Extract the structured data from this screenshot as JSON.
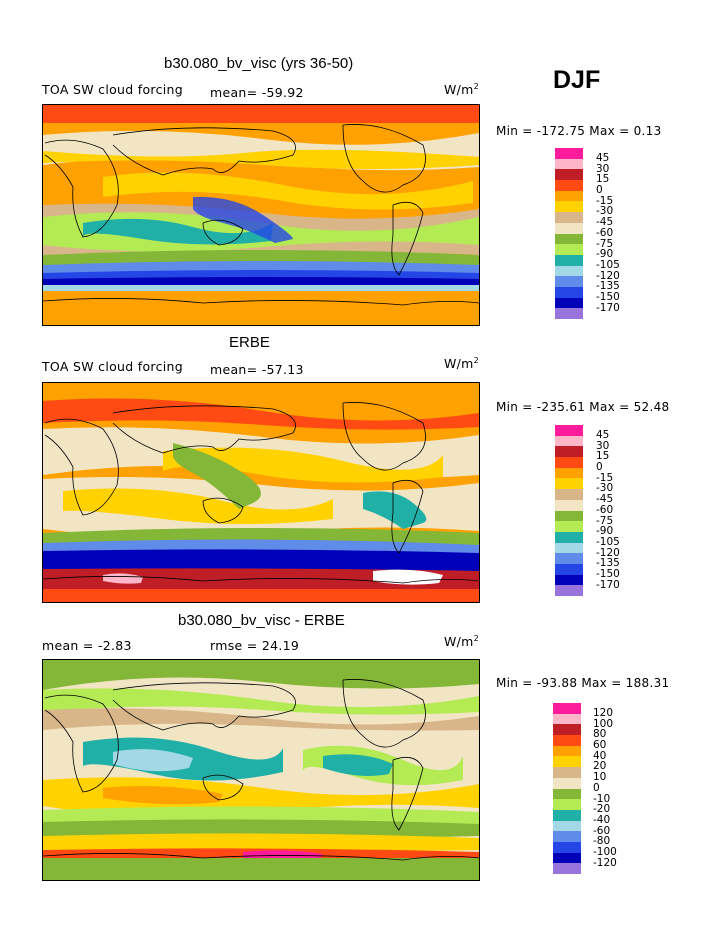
{
  "season": "DJF",
  "panels": [
    {
      "title": "b30.080_bv_visc (yrs 36-50)",
      "left_label": "TOA SW cloud forcing",
      "mean_text": "mean= -59.92",
      "rmse_text": "",
      "units_base": "W/m",
      "units_exp": "2",
      "minmax_text": "Min = -172.75 Max =   0.13",
      "colorbar_levels": [
        "45",
        "30",
        "15",
        "0",
        "-15",
        "-30",
        "-45",
        "-60",
        "-75",
        "-90",
        "-105",
        "-120",
        "-135",
        "-150",
        "-170"
      ]
    },
    {
      "title": "ERBE",
      "left_label": "TOA SW cloud forcing",
      "mean_text": "mean= -57.13",
      "rmse_text": "",
      "units_base": "W/m",
      "units_exp": "2",
      "minmax_text": "Min = -235.61 Max =  52.48",
      "colorbar_levels": [
        "45",
        "30",
        "15",
        "0",
        "-15",
        "-30",
        "-45",
        "-60",
        "-75",
        "-90",
        "-105",
        "-120",
        "-135",
        "-150",
        "-170"
      ]
    },
    {
      "title": "b30.080_bv_visc - ERBE",
      "left_label": "mean =  -2.83",
      "mean_text": "",
      "rmse_text": "rmse =  24.19",
      "units_base": "W/m",
      "units_exp": "2",
      "minmax_text": "Min = -93.88 Max = 188.31",
      "colorbar_levels": [
        "120",
        "100",
        "80",
        "60",
        "40",
        "20",
        "10",
        "0",
        "-10",
        "-20",
        "-40",
        "-60",
        "-80",
        "-100",
        "-120"
      ]
    }
  ],
  "colorbar_colors": [
    "#ff1c9c",
    "#ffb6c8",
    "#c01e26",
    "#ff4a14",
    "#ffa100",
    "#ffd200",
    "#d9b68a",
    "#f1e5c3",
    "#84b637",
    "#b4eb54",
    "#20b0a8",
    "#a3d8e6",
    "#5f8ce8",
    "#2446e6",
    "#0000b8",
    "#9874dc"
  ]
}
